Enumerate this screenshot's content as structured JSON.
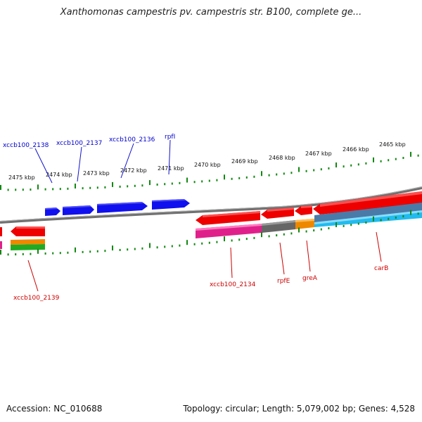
{
  "title": "Xanthomonas campestris pv. campestris str. B100, complete ge...",
  "footer": {
    "accession": "Accession: NC_010688",
    "summary": "Topology: circular; Length: 5,079,002 bp; Genes: 4,528"
  },
  "colors": {
    "backbone": "#8a8a8a",
    "tick": "#118811",
    "forward_gene": "#1010ee",
    "reverse_gene": "#ee0000",
    "pink_feature": "#e0208a",
    "gray_feature": "#666666",
    "orange_feature": "#ee8800",
    "cyan_feature": "#22bbee",
    "steel_feature": "#4a7aa8",
    "green_feature": "#22aa22",
    "forward_label": "#0000cc",
    "reverse_label": "#cc0000"
  },
  "scale_labels": [
    "2475 kbp",
    "2474 kbp",
    "2473 kbp",
    "2472 kbp",
    "2471 kbp",
    "2470 kbp",
    "2469 kbp",
    "2468 kbp",
    "2467 kbp",
    "2466 kbp",
    "2465 kbp"
  ],
  "forward_labels": [
    "xccb100_2138",
    "xccb100_2137",
    "xccb100_2136",
    "rpfI"
  ],
  "reverse_labels": [
    "xccb100_2139",
    "xccb100_2134",
    "rpfE",
    "greA",
    "carB"
  ]
}
